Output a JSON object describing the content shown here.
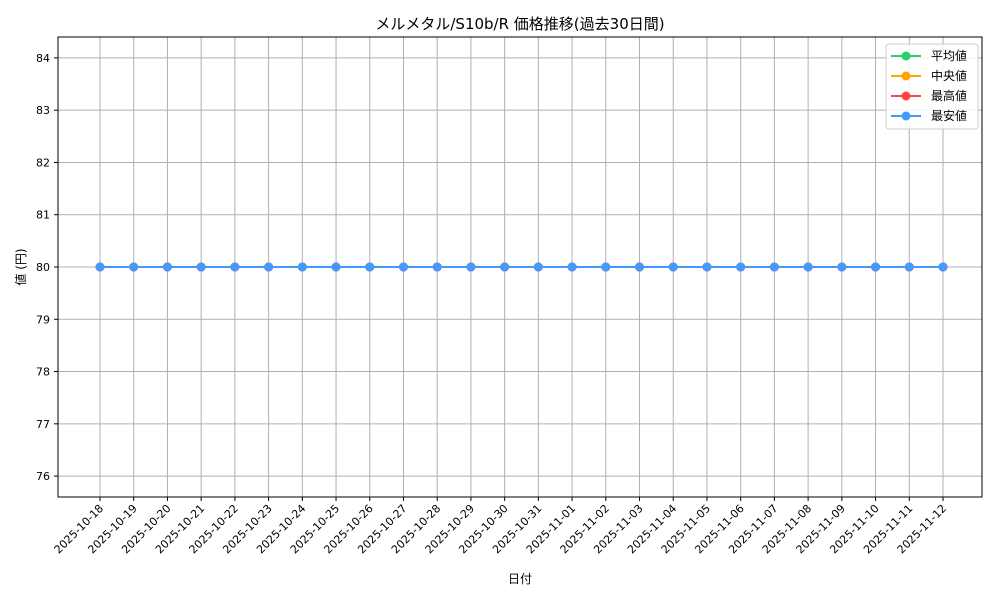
{
  "chart_data": {
    "type": "line",
    "title": "メルメタル/S10b/R 価格推移(過去30日間)",
    "xlabel": "日付",
    "ylabel": "値 (円)",
    "ylim": [
      75.6,
      84.4
    ],
    "yticks": [
      76,
      77,
      78,
      79,
      80,
      81,
      82,
      83,
      84
    ],
    "grid": true,
    "legend_placement": "top-right",
    "categories": [
      "2025-10-18",
      "2025-10-19",
      "2025-10-20",
      "2025-10-21",
      "2025-10-22",
      "2025-10-23",
      "2025-10-24",
      "2025-10-25",
      "2025-10-26",
      "2025-10-27",
      "2025-10-28",
      "2025-10-29",
      "2025-10-30",
      "2025-10-31",
      "2025-11-01",
      "2025-11-02",
      "2025-11-03",
      "2025-11-04",
      "2025-11-05",
      "2025-11-06",
      "2025-11-07",
      "2025-11-08",
      "2025-11-09",
      "2025-11-10",
      "2025-11-11",
      "2025-11-12"
    ],
    "series": [
      {
        "name": "平均値",
        "color": "#2ecc71",
        "values": [
          80,
          80,
          80,
          80,
          80,
          80,
          80,
          80,
          80,
          80,
          80,
          80,
          80,
          80,
          80,
          80,
          80,
          80,
          80,
          80,
          80,
          80,
          80,
          80,
          80,
          80
        ]
      },
      {
        "name": "中央値",
        "color": "#ffa500",
        "values": [
          80,
          80,
          80,
          80,
          80,
          80,
          80,
          80,
          80,
          80,
          80,
          80,
          80,
          80,
          80,
          80,
          80,
          80,
          80,
          80,
          80,
          80,
          80,
          80,
          80,
          80
        ]
      },
      {
        "name": "最高値",
        "color": "#ff4444",
        "values": [
          80,
          80,
          80,
          80,
          80,
          80,
          80,
          80,
          80,
          80,
          80,
          80,
          80,
          80,
          80,
          80,
          80,
          80,
          80,
          80,
          80,
          80,
          80,
          80,
          80,
          80
        ]
      },
      {
        "name": "最安値",
        "color": "#4499ff",
        "values": [
          80,
          80,
          80,
          80,
          80,
          80,
          80,
          80,
          80,
          80,
          80,
          80,
          80,
          80,
          80,
          80,
          80,
          80,
          80,
          80,
          80,
          80,
          80,
          80,
          80,
          80
        ]
      }
    ]
  }
}
